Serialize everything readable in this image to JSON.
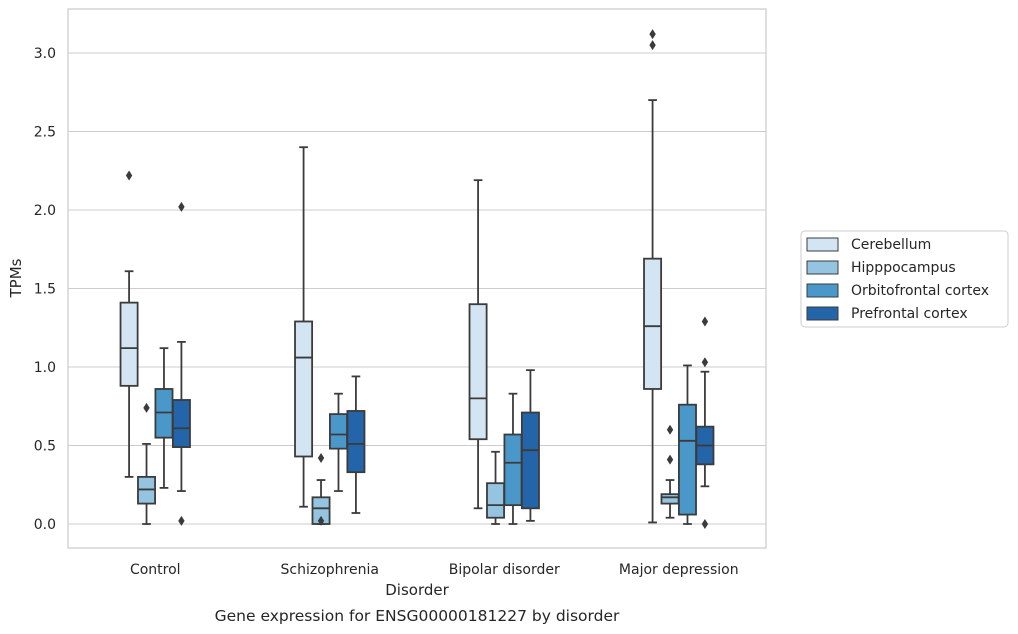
{
  "chart_data": {
    "type": "boxplot",
    "caption": "Gene expression for ENSG00000181227 by disorder",
    "xlabel": "Disorder",
    "ylabel": "TPMs",
    "ylim": [
      -0.15,
      3.27
    ],
    "yticks": [
      0.0,
      0.5,
      1.0,
      1.5,
      2.0,
      2.5,
      3.0
    ],
    "ytick_labels": [
      "0.0",
      "0.5",
      "1.0",
      "1.5",
      "2.0",
      "2.5",
      "3.0"
    ],
    "grid": "horizontal",
    "legend_position": "right",
    "categories": [
      "Control",
      "Schizophrenia",
      "Bipolar disorder",
      "Major depression"
    ],
    "series": [
      {
        "name": "Cerebellum",
        "color": "#d3e4f3",
        "boxes": [
          {
            "whislo": 0.3,
            "q1": 0.88,
            "med": 1.12,
            "q3": 1.41,
            "whishi": 1.61,
            "fliers": [
              2.22
            ]
          },
          {
            "whislo": 0.11,
            "q1": 0.43,
            "med": 1.06,
            "q3": 1.29,
            "whishi": 2.4,
            "fliers": []
          },
          {
            "whislo": 0.1,
            "q1": 0.54,
            "med": 0.8,
            "q3": 1.4,
            "whishi": 2.19,
            "fliers": []
          },
          {
            "whislo": 0.01,
            "q1": 0.86,
            "med": 1.26,
            "q3": 1.69,
            "whishi": 2.7,
            "fliers": [
              3.05,
              3.12
            ]
          }
        ]
      },
      {
        "name": "Hipppocampus",
        "color": "#94c4df",
        "boxes": [
          {
            "whislo": 0.0,
            "q1": 0.13,
            "med": 0.22,
            "q3": 0.3,
            "whishi": 0.51,
            "fliers": [
              0.74
            ]
          },
          {
            "whislo": 0.0,
            "q1": 0.0,
            "med": 0.1,
            "q3": 0.17,
            "whishi": 0.28,
            "fliers": [
              0.42,
              0.02
            ]
          },
          {
            "whislo": 0.0,
            "q1": 0.04,
            "med": 0.12,
            "q3": 0.26,
            "whishi": 0.46,
            "fliers": []
          },
          {
            "whislo": 0.04,
            "q1": 0.13,
            "med": 0.17,
            "q3": 0.19,
            "whishi": 0.28,
            "fliers": [
              0.41,
              0.6
            ]
          }
        ]
      },
      {
        "name": "Orbitofrontal cortex",
        "color": "#4a98c9",
        "boxes": [
          {
            "whislo": 0.23,
            "q1": 0.55,
            "med": 0.71,
            "q3": 0.86,
            "whishi": 1.12,
            "fliers": []
          },
          {
            "whislo": 0.21,
            "q1": 0.48,
            "med": 0.57,
            "q3": 0.7,
            "whishi": 0.83,
            "fliers": []
          },
          {
            "whislo": 0.0,
            "q1": 0.12,
            "med": 0.39,
            "q3": 0.57,
            "whishi": 0.83,
            "fliers": []
          },
          {
            "whislo": 0.0,
            "q1": 0.06,
            "med": 0.53,
            "q3": 0.76,
            "whishi": 1.01,
            "fliers": []
          }
        ]
      },
      {
        "name": "Prefrontal cortex",
        "color": "#2464a8",
        "boxes": [
          {
            "whislo": 0.21,
            "q1": 0.49,
            "med": 0.61,
            "q3": 0.79,
            "whishi": 1.16,
            "fliers": [
              2.02,
              0.02
            ]
          },
          {
            "whislo": 0.07,
            "q1": 0.33,
            "med": 0.51,
            "q3": 0.72,
            "whishi": 0.94,
            "fliers": []
          },
          {
            "whislo": 0.02,
            "q1": 0.1,
            "med": 0.47,
            "q3": 0.71,
            "whishi": 0.98,
            "fliers": []
          },
          {
            "whislo": 0.24,
            "q1": 0.38,
            "med": 0.5,
            "q3": 0.62,
            "whishi": 0.97,
            "fliers": [
              1.03,
              1.29,
              0.0
            ]
          }
        ]
      }
    ]
  }
}
